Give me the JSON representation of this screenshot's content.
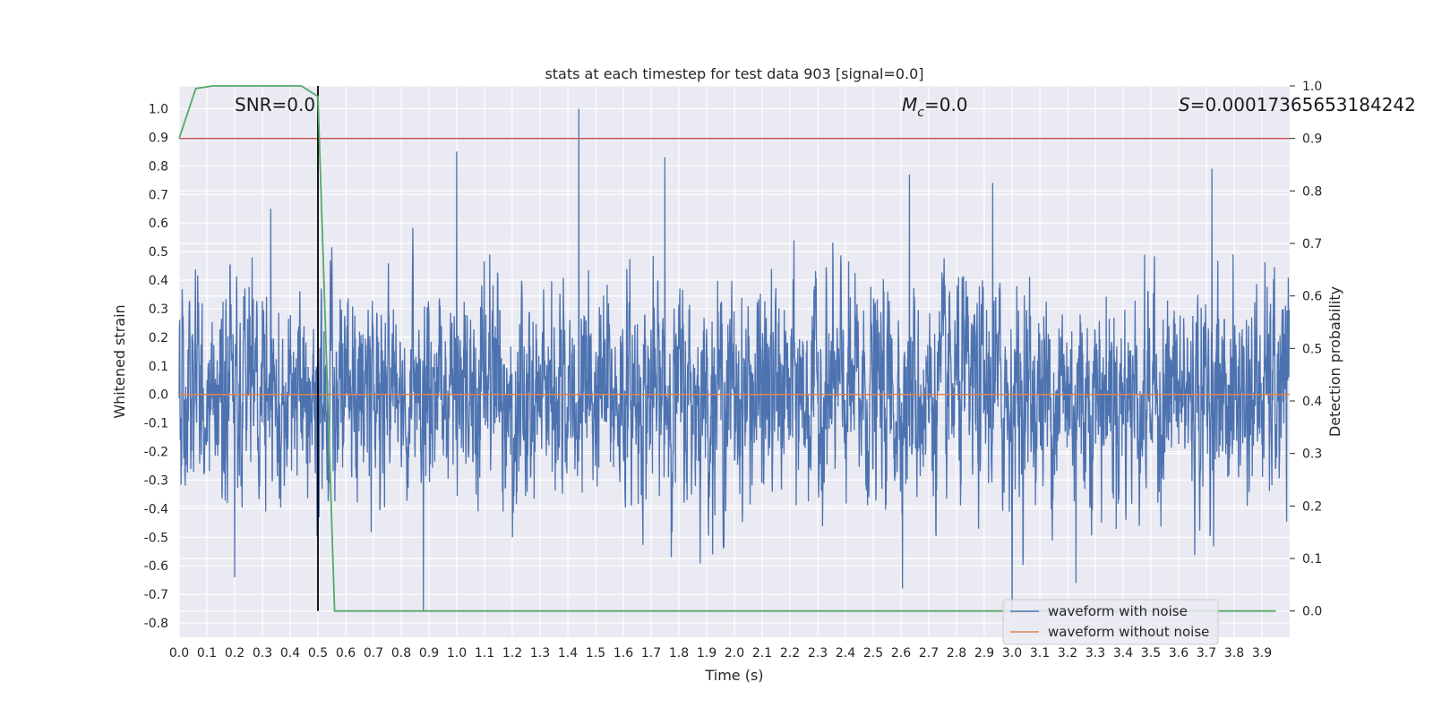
{
  "chart_data": {
    "type": "line",
    "title": "stats at each timestep for test data 903 [signal=0.0]",
    "xlabel": "Time (s)",
    "ylabel": "Whitened strain",
    "y2label": "Detection probability",
    "xlim": [
      0.0,
      4.0
    ],
    "ylim": [
      -0.85,
      1.08
    ],
    "y2lim": [
      -0.05,
      1.0
    ],
    "x_ticks": [
      "0.0",
      "0.1",
      "0.2",
      "0.3",
      "0.4",
      "0.5",
      "0.6",
      "0.7",
      "0.8",
      "0.9",
      "1.0",
      "1.1",
      "1.2",
      "1.3",
      "1.4",
      "1.5",
      "1.6",
      "1.7",
      "1.8",
      "1.9",
      "2.0",
      "2.1",
      "2.2",
      "2.3",
      "2.4",
      "2.5",
      "2.6",
      "2.7",
      "2.8",
      "2.9",
      "3.0",
      "3.1",
      "3.2",
      "3.3",
      "3.4",
      "3.5",
      "3.6",
      "3.7",
      "3.8",
      "3.9"
    ],
    "y_ticks": [
      "-0.8",
      "-0.7",
      "-0.6",
      "-0.5",
      "-0.4",
      "-0.3",
      "-0.2",
      "-0.1",
      "0.0",
      "0.1",
      "0.2",
      "0.3",
      "0.4",
      "0.5",
      "0.6",
      "0.7",
      "0.8",
      "0.9",
      "1.0"
    ],
    "y2_ticks": [
      "0.0",
      "0.1",
      "0.2",
      "0.3",
      "0.4",
      "0.5",
      "0.6",
      "0.7",
      "0.8",
      "0.9",
      "1.0"
    ],
    "grid": true,
    "legend_position": "bottom-right",
    "annotations": {
      "snr": "SNR=0.0",
      "mc_symbol": "M",
      "mc_sub": "c",
      "mc_value": "=0.0",
      "s_symbol": "S",
      "s_value": "=0.00017365653184242"
    },
    "series": [
      {
        "name": "waveform with noise",
        "axis": "left",
        "color": "#4c72b0",
        "description_of_shape": "dense noise, roughly uniform",
        "noise_std": 0.18,
        "peaks": [
          {
            "x": 1.0,
            "y": 0.85
          },
          {
            "x": 1.44,
            "y": 1.0
          },
          {
            "x": 1.75,
            "y": 0.83
          },
          {
            "x": 0.88,
            "y": -0.76
          },
          {
            "x": 3.0,
            "y": -0.77
          },
          {
            "x": 2.63,
            "y": 0.77
          },
          {
            "x": 3.72,
            "y": 0.79
          },
          {
            "x": 2.93,
            "y": 0.74
          },
          {
            "x": 0.33,
            "y": 0.65
          },
          {
            "x": 0.2,
            "y": -0.64
          },
          {
            "x": 3.23,
            "y": -0.66
          }
        ]
      },
      {
        "name": "waveform without noise",
        "axis": "left",
        "color": "#dd8452",
        "x": [
          0.0,
          4.0
        ],
        "y": [
          0.0,
          0.0
        ]
      },
      {
        "name": "detection probability",
        "axis": "right",
        "color": "#55a868",
        "x": [
          0.0,
          0.06,
          0.12,
          0.2,
          0.3,
          0.44,
          0.5,
          0.56,
          0.6,
          3.95
        ],
        "y": [
          0.9,
          0.995,
          1.0,
          1.0,
          1.0,
          1.0,
          0.98,
          0.0,
          0.0,
          0.0
        ]
      }
    ],
    "threshold_line": {
      "axis": "right",
      "y": 0.9,
      "color": "#c44e52"
    },
    "vertical_line": {
      "x": 0.5,
      "y_from_right": 0.0,
      "y_to_right": 1.0,
      "color": "#000000"
    }
  }
}
